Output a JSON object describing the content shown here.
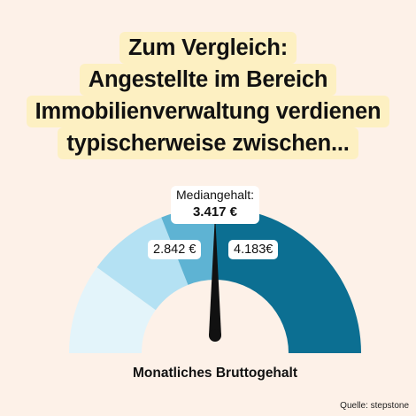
{
  "title": {
    "lines": [
      "Zum Vergleich:",
      "Angestellte im Bereich",
      "Immobilienverwaltung verdienen",
      "typischerweise zwischen..."
    ]
  },
  "chart_data": {
    "type": "gauge",
    "labels": {
      "median_label": "Mediangehalt:",
      "median_value": "3.417 €",
      "low_value": "2.842 €",
      "high_value": "4.183€",
      "bottom_label": "Monatliches Bruttogehalt"
    },
    "segments": [
      {
        "color": "#e3f4fa",
        "span_fraction": 0.2
      },
      {
        "color": "#b4e1f3",
        "span_fraction": 0.18
      },
      {
        "color": "#5eb3d3",
        "span_fraction": 0.12
      },
      {
        "color": "#0c6f92",
        "span_fraction": 0.5
      }
    ],
    "needle_fraction": 0.5,
    "needle_color": "#111111"
  },
  "source": "Quelle: stepstone"
}
